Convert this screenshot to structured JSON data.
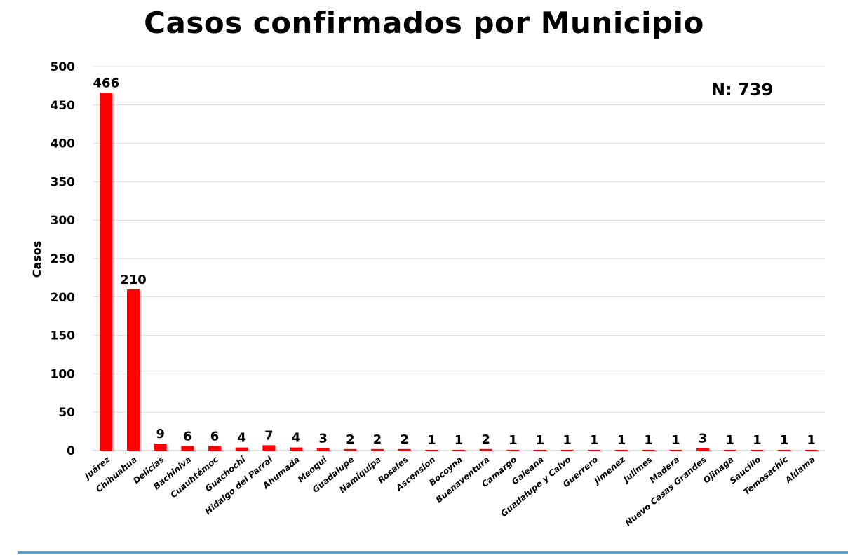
{
  "chart_data": {
    "type": "bar",
    "title": "Casos confirmados por Municipio",
    "ylabel": "Casos",
    "xlabel": "",
    "annotation": "N: 739",
    "ylim": [
      0,
      500
    ],
    "yticks": [
      0,
      50,
      100,
      150,
      200,
      250,
      300,
      350,
      400,
      450,
      500
    ],
    "grid": true,
    "legend": "none",
    "bar_color": "#ff0000",
    "categories": [
      "Juárez",
      "Chihuahua",
      "Delicias",
      "Bachiniva",
      "Cuauhtémoc",
      "Guachochi",
      "Hidalgo del Parral",
      "Ahumada",
      "Meoqui",
      "Guadalupe",
      "Namiquipa",
      "Rosales",
      "Ascension",
      "Bocoyna",
      "Buenaventura",
      "Camargo",
      "Galeana",
      "Guadalupe y Calvo",
      "Guerrero",
      "Jimenez",
      "Julimes",
      "Madera",
      "Nuevo Casas Grandes",
      "Ojinaga",
      "Saucillo",
      "Temosachic",
      "Aldama"
    ],
    "values": [
      466,
      210,
      9,
      6,
      6,
      4,
      7,
      4,
      3,
      2,
      2,
      2,
      1,
      1,
      2,
      1,
      1,
      1,
      1,
      1,
      1,
      1,
      3,
      1,
      1,
      1,
      1
    ]
  }
}
